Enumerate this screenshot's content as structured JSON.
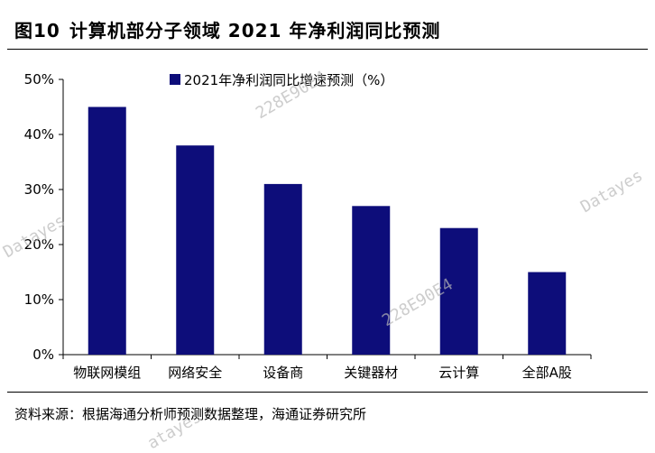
{
  "figure": {
    "number": "图10",
    "title": "计算机部分子领域 2021 年净利润同比预测",
    "source": "资料来源：根据海通分析师预测数据整理，海通证券研究所"
  },
  "watermarks": [
    "Datayes",
    "228E90E4",
    "Datayes",
    "228E90E4",
    "atayes"
  ],
  "colors": {
    "bar": "#0d0d7a",
    "axis": "#000000"
  },
  "chart_data": {
    "type": "bar",
    "categories": [
      "物联网模组",
      "网络安全",
      "设备商",
      "关键器材",
      "云计算",
      "全部A股"
    ],
    "series": [
      {
        "name": "2021年净利润同比增速预测（%）",
        "values": [
          45,
          38,
          31,
          27,
          23,
          15
        ]
      }
    ],
    "ylim": [
      0,
      50
    ],
    "yticks": [
      0,
      10,
      20,
      30,
      40,
      50
    ],
    "ytick_labels": [
      "0%",
      "10%",
      "20%",
      "30%",
      "40%",
      "50%"
    ],
    "legend_position": "top-center",
    "grid": false
  }
}
